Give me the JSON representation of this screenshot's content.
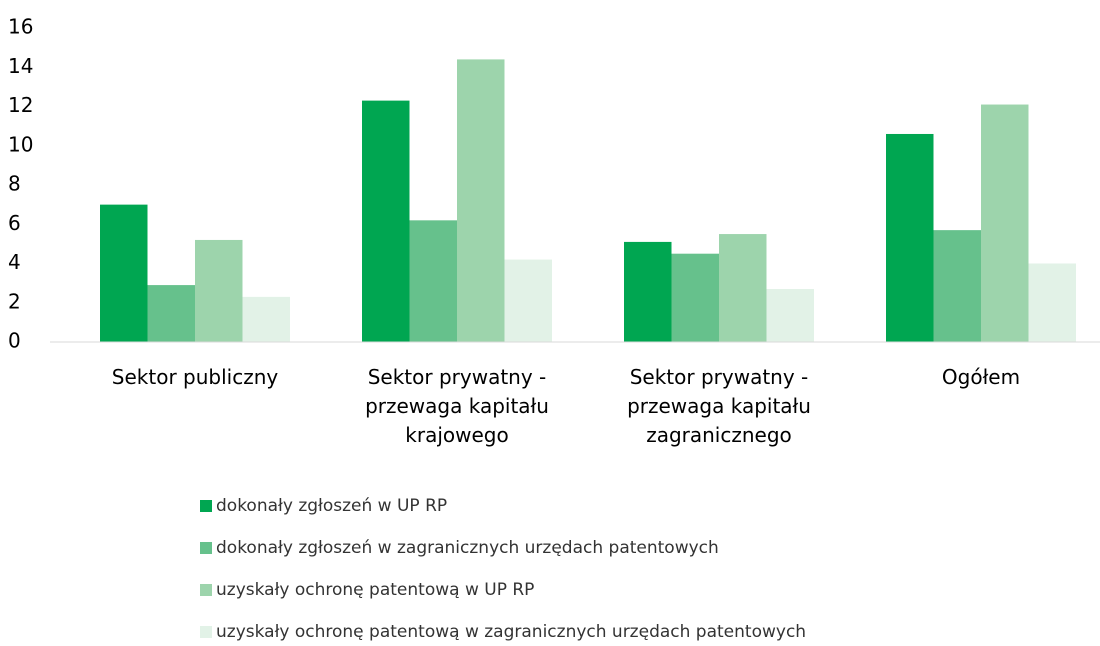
{
  "chart_data": {
    "type": "bar",
    "categories": [
      "Sektor publiczny",
      "Sektor prywatny - przewaga kapitału krajowego",
      "Sektor prywatny - przewaga kapitału zagranicznego",
      "Ogółem"
    ],
    "series": [
      {
        "name": "dokonały zgłoszeń w UP RP",
        "color": "#00a651",
        "values": [
          7.0,
          12.3,
          5.1,
          10.6
        ]
      },
      {
        "name": "dokonały zgłoszeń w zagranicznych urzędach patentowych",
        "color": "#66c18c",
        "values": [
          2.9,
          6.2,
          4.5,
          5.7
        ]
      },
      {
        "name": "uzyskały ochronę patentową w UP RP",
        "color": "#9dd4ac",
        "values": [
          5.2,
          14.4,
          5.5,
          12.1
        ]
      },
      {
        "name": "uzyskały ochronę patentową w zagranicznych urzędach patentowych",
        "color": "#e2f2e7",
        "values": [
          2.3,
          4.2,
          2.7,
          4.0
        ]
      }
    ],
    "ylim": [
      0,
      16
    ],
    "yticks": [
      0,
      2,
      4,
      6,
      8,
      10,
      12,
      14,
      16
    ],
    "grid": false,
    "legend": "bottom"
  }
}
